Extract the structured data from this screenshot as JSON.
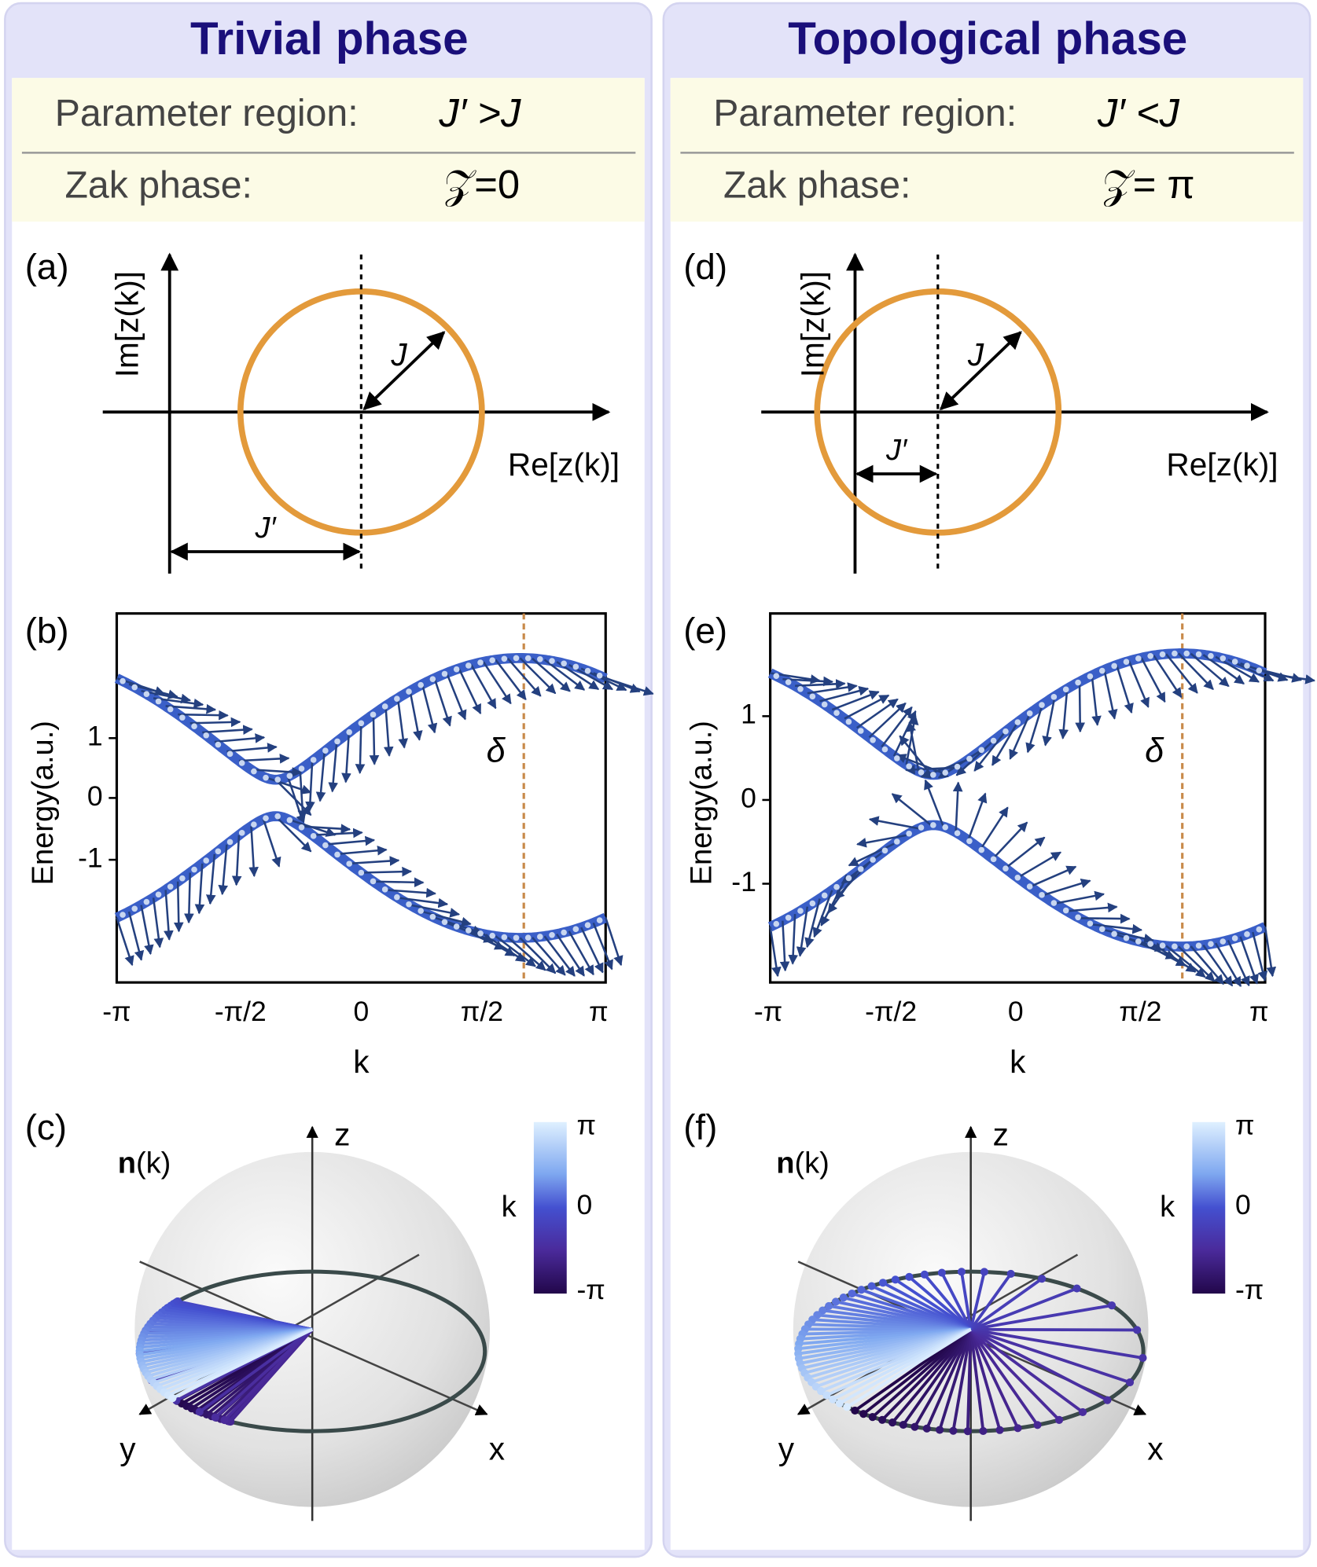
{
  "panels": [
    {
      "title": "Trivial phase",
      "region_label": "Parameter region:",
      "region_value": "J′ >J",
      "zak_label": "Zak phase:",
      "zak_value": "𝒵=0",
      "a": {
        "label": "(a)",
        "y_axis": "Im[z(k)]",
        "x_axis": "Re[z(k)]",
        "radius_label": "J",
        "offset_label": "J′"
      },
      "b": {
        "label": "(b)",
        "y_axis": "Energy(a.u.)",
        "x_axis": "k",
        "yticks": [
          "1",
          "0",
          "-1"
        ],
        "xticks": [
          "-π",
          "-π/2",
          "0",
          "π/2",
          "π"
        ],
        "annotation": "δ"
      },
      "c": {
        "label": "(c)",
        "vector_bold": "n",
        "vector_rest": "(k)",
        "axes": [
          "z",
          "y",
          "x"
        ],
        "colorbar_label": "k",
        "colorbar_ticks": [
          "π",
          "0",
          "-π"
        ]
      }
    },
    {
      "title": "Topological phase",
      "region_label": "Parameter region:",
      "region_value": "J′ <J",
      "zak_label": "Zak phase:",
      "zak_value": "𝒵= π",
      "a": {
        "label": "(d)",
        "y_axis": "Im[z(k)]",
        "x_axis": "Re[z(k)]",
        "radius_label": "J",
        "offset_label": "J′"
      },
      "b": {
        "label": "(e)",
        "y_axis": "Energy(a.u.)",
        "x_axis": "k",
        "yticks": [
          "1",
          "0",
          "-1"
        ],
        "xticks": [
          "-π",
          "-π/2",
          "0",
          "π/2",
          "π"
        ],
        "annotation": "δ"
      },
      "c": {
        "label": "(f)",
        "vector_bold": "n",
        "vector_rest": "(k)",
        "axes": [
          "z",
          "y",
          "x"
        ],
        "colorbar_label": "k",
        "colorbar_ticks": [
          "π",
          "0",
          "-π"
        ]
      }
    }
  ]
}
